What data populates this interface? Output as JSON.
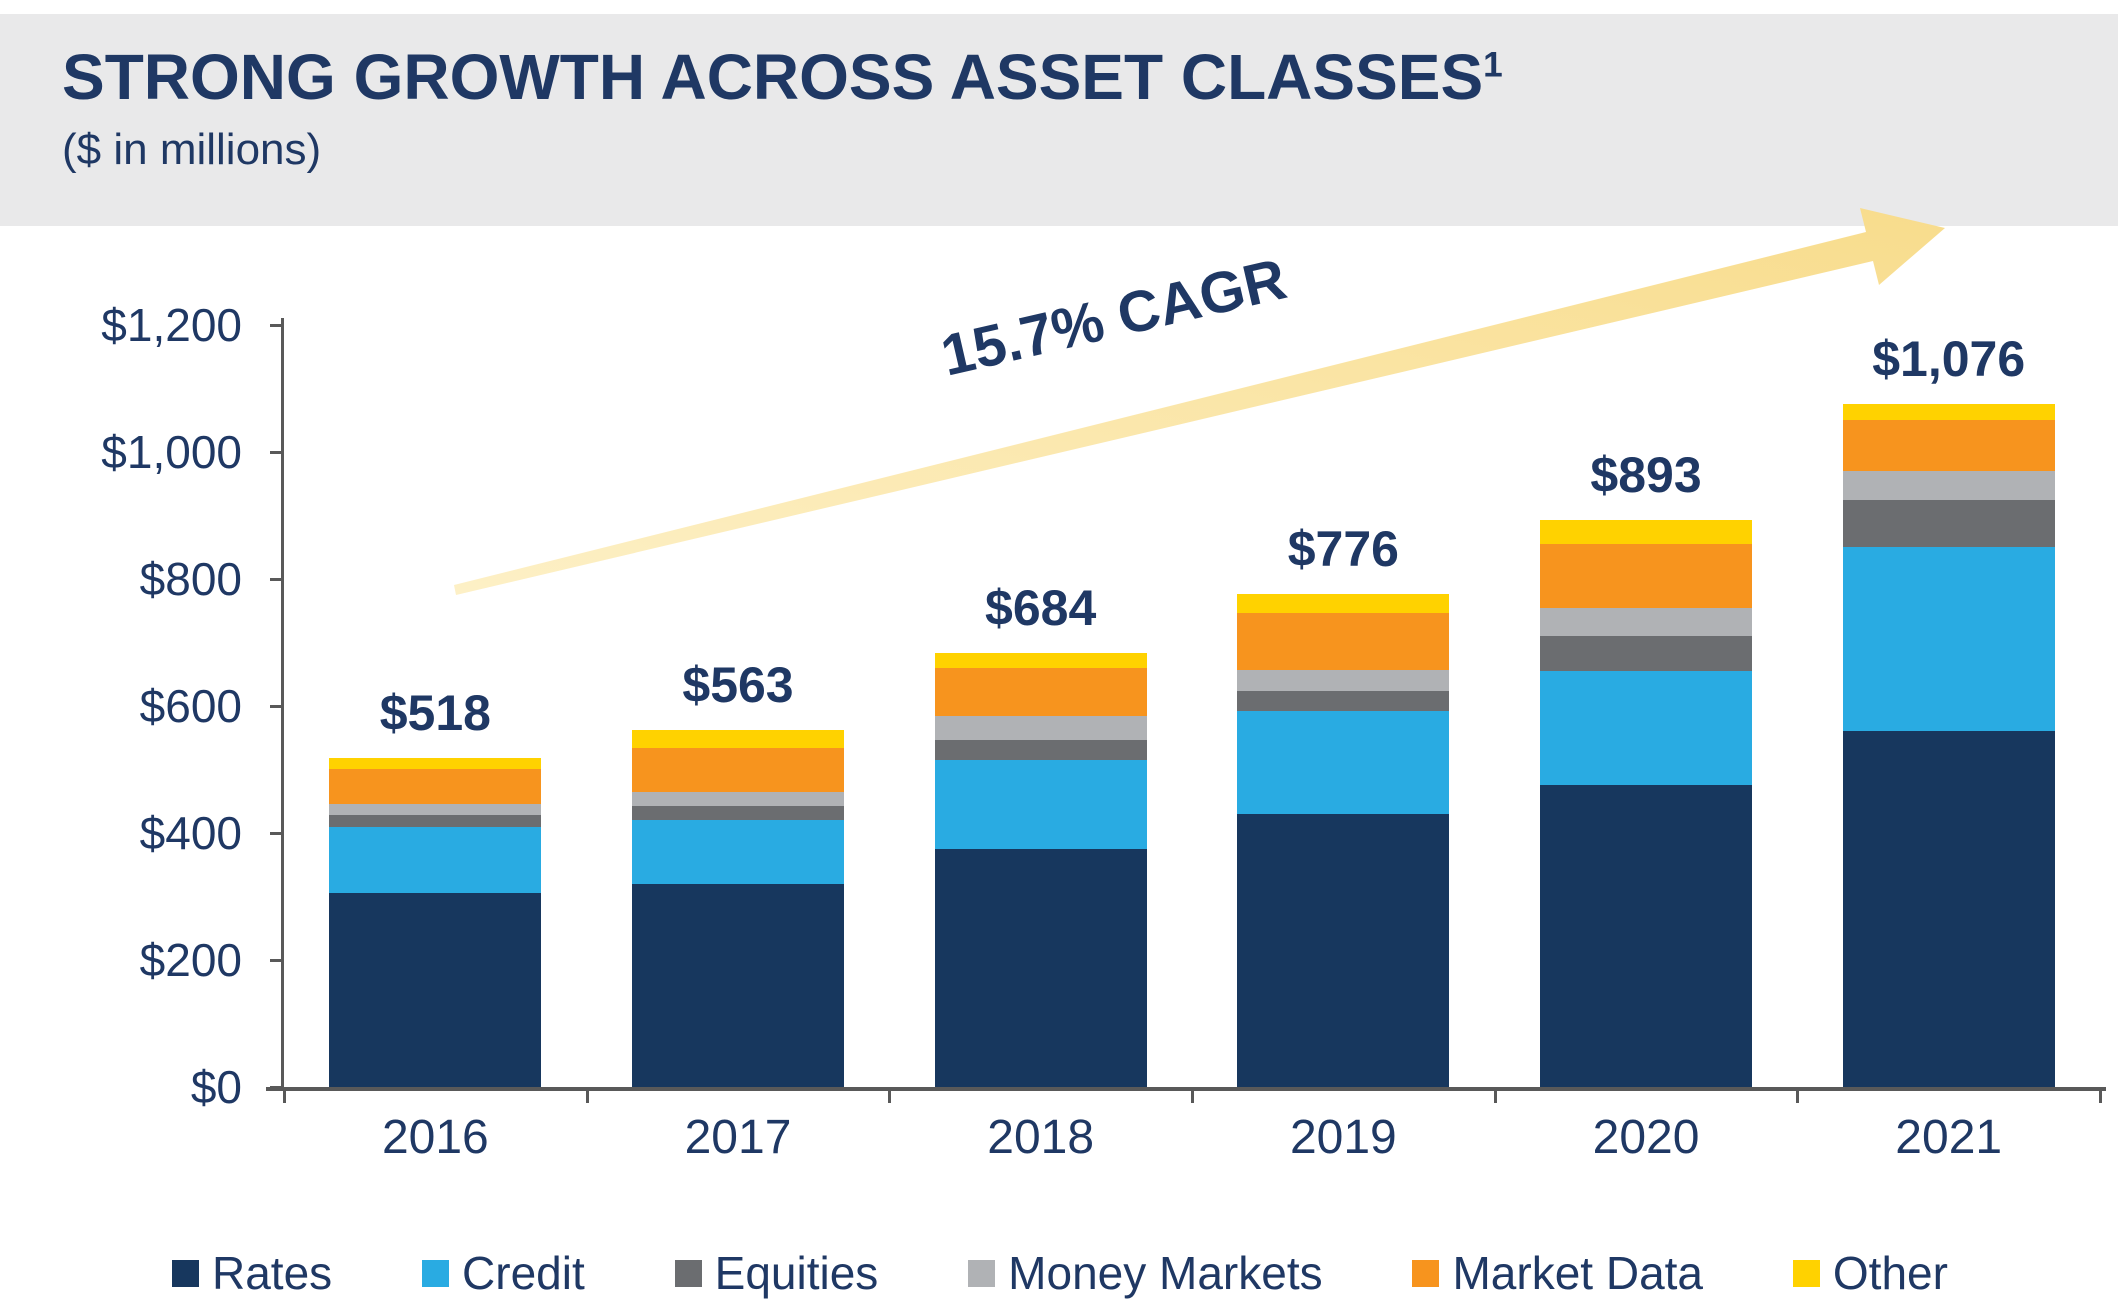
{
  "header": {
    "title": "STRONG GROWTH ACROSS ASSET CLASSES",
    "title_superscript": "1",
    "subtitle": "($ in millions)"
  },
  "colors": {
    "title_navy": "#1F3864",
    "axis_gray": "#595959",
    "header_band": "#E9E9EA",
    "arrow_fill_light": "#FDF0C6",
    "arrow_fill_dark": "#F8DC8C"
  },
  "chart_data": {
    "type": "bar",
    "stacked": true,
    "title": "STRONG GROWTH ACROSS ASSET CLASSES¹",
    "subtitle": "($ in millions)",
    "annotation": "15.7% CAGR",
    "categories": [
      "2016",
      "2017",
      "2018",
      "2019",
      "2020",
      "2021"
    ],
    "totals": [
      518,
      563,
      684,
      776,
      893,
      1076
    ],
    "total_labels": [
      "$518",
      "$563",
      "$684",
      "$776",
      "$893",
      "$1,076"
    ],
    "series": [
      {
        "name": "Rates",
        "color": "#17375E",
        "values": [
          305,
          320,
          375,
          430,
          475,
          560
        ]
      },
      {
        "name": "Credit",
        "color": "#29ABE2",
        "values": [
          105,
          100,
          140,
          162,
          180,
          290
        ]
      },
      {
        "name": "Equities",
        "color": "#6B6D70",
        "values": [
          18,
          22,
          32,
          32,
          55,
          75
        ]
      },
      {
        "name": "Money Markets",
        "color": "#B0B2B5",
        "values": [
          18,
          22,
          37,
          32,
          45,
          45
        ]
      },
      {
        "name": "Market Data",
        "color": "#F7941E",
        "values": [
          55,
          70,
          76,
          91,
          100,
          80
        ]
      },
      {
        "name": "Other",
        "color": "#FFD200",
        "values": [
          17,
          29,
          24,
          29,
          38,
          26
        ]
      }
    ],
    "ylim": [
      0,
      1200
    ],
    "ytick_step": 200,
    "ytick_labels": [
      "$0",
      "$200",
      "$400",
      "$600",
      "$800",
      "$1,000",
      "$1,200"
    ],
    "legend_position": "bottom",
    "grid": false
  }
}
